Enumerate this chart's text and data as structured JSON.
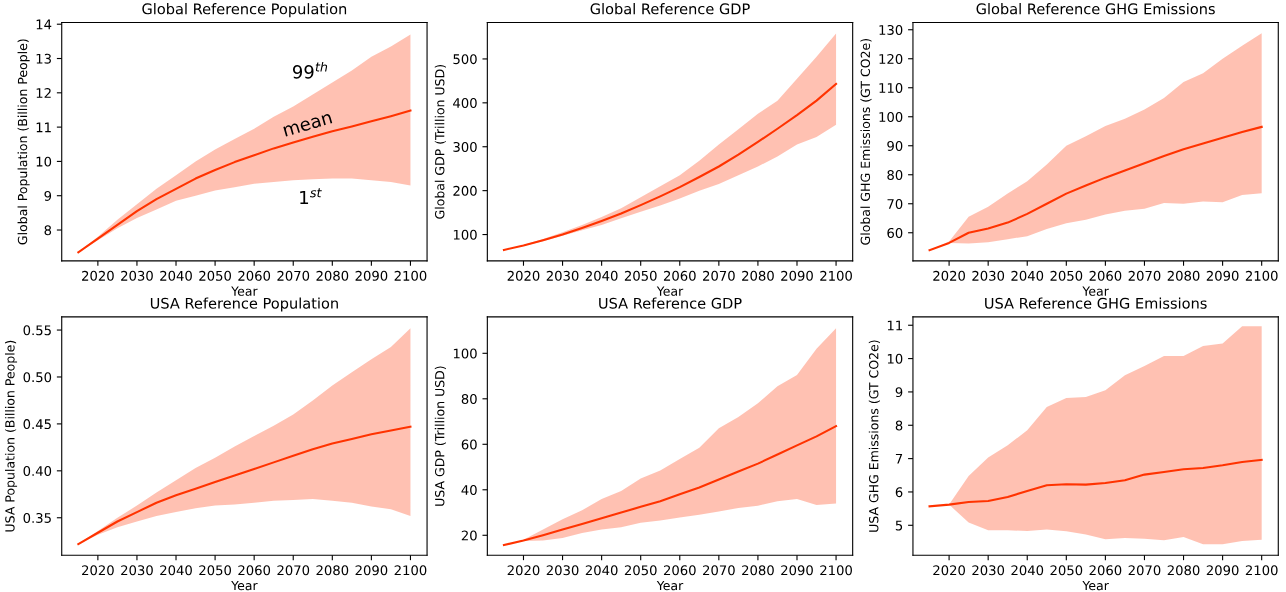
{
  "chart_data": [
    {
      "type": "line",
      "title": "Global Reference Population",
      "xlabel": "Year",
      "ylabel": "Global Population (Billion People)",
      "xlim": [
        2010.75,
        2104.25
      ],
      "xticks": [
        2020,
        2030,
        2040,
        2050,
        2060,
        2070,
        2080,
        2090,
        2100
      ],
      "ylim": [
        7.1,
        14.05
      ],
      "yticks": [
        8,
        9,
        10,
        11,
        12,
        13,
        14
      ],
      "x": [
        2015,
        2020,
        2025,
        2030,
        2035,
        2040,
        2045,
        2050,
        2055,
        2060,
        2065,
        2070,
        2075,
        2080,
        2085,
        2090,
        2095,
        2100
      ],
      "series": [
        {
          "color": "#ff3300",
          "values": [
            7.35,
            7.75,
            8.15,
            8.55,
            8.9,
            9.2,
            9.5,
            9.75,
            9.98,
            10.18,
            10.38,
            10.55,
            10.72,
            10.88,
            11.02,
            11.17,
            11.32,
            11.48
          ],
          "upper": [
            7.35,
            7.8,
            8.3,
            8.75,
            9.2,
            9.6,
            10.0,
            10.35,
            10.65,
            10.95,
            11.3,
            11.6,
            11.95,
            12.3,
            12.65,
            13.05,
            13.35,
            13.7
          ],
          "lower": [
            7.35,
            7.7,
            8.05,
            8.35,
            8.6,
            8.85,
            9.0,
            9.15,
            9.25,
            9.35,
            9.4,
            9.45,
            9.48,
            9.5,
            9.5,
            9.45,
            9.4,
            9.3
          ]
        }
      ],
      "annotations": [
        "99$^{th}$",
        "mean",
        "1$^{st}$"
      ]
    },
    {
      "type": "line",
      "title": "Global Reference GDP",
      "xlabel": "Year",
      "ylabel": "Global GDP (Trillion USD)",
      "xlim": [
        2010.75,
        2104.25
      ],
      "xticks": [
        2020,
        2030,
        2040,
        2050,
        2060,
        2070,
        2080,
        2090,
        2100
      ],
      "ylim": [
        40,
        583
      ],
      "yticks": [
        100,
        200,
        300,
        400,
        500
      ],
      "x": [
        2015,
        2020,
        2025,
        2030,
        2035,
        2040,
        2045,
        2050,
        2055,
        2060,
        2065,
        2070,
        2075,
        2080,
        2085,
        2090,
        2095,
        2100
      ],
      "series": [
        {
          "color": "#ff3300",
          "values": [
            65,
            75,
            87,
            100,
            115,
            131,
            148,
            167,
            187,
            208,
            231,
            255,
            282,
            311,
            341,
            372,
            405,
            443
          ],
          "upper": [
            65,
            76,
            90,
            105,
            122,
            140,
            160,
            185,
            210,
            235,
            268,
            305,
            340,
            375,
            405,
            455,
            505,
            558
          ],
          "lower": [
            65,
            74,
            85,
            97,
            110,
            122,
            137,
            152,
            166,
            182,
            200,
            215,
            235,
            255,
            278,
            305,
            322,
            350
          ]
        }
      ]
    },
    {
      "type": "line",
      "title": "Global Reference GHG Emissions",
      "xlabel": "Year",
      "ylabel": "Global GHG Emissions (GT CO2e)",
      "xlim": [
        2010.75,
        2104.25
      ],
      "xticks": [
        2020,
        2030,
        2040,
        2050,
        2060,
        2070,
        2080,
        2090,
        2100
      ],
      "ylim": [
        50.3,
        132.5
      ],
      "yticks": [
        60,
        70,
        80,
        90,
        100,
        110,
        120,
        130
      ],
      "x": [
        2015,
        2020,
        2025,
        2030,
        2035,
        2040,
        2045,
        2050,
        2055,
        2060,
        2065,
        2070,
        2075,
        2080,
        2085,
        2090,
        2095,
        2100
      ],
      "series": [
        {
          "color": "#ff3300",
          "values": [
            54,
            56.5,
            60,
            61.5,
            63.5,
            66.5,
            70,
            73.5,
            76.3,
            79,
            81.5,
            84,
            86.5,
            88.8,
            90.8,
            92.8,
            94.7,
            96.5
          ],
          "upper": [
            54,
            57,
            65.5,
            69,
            73.5,
            77.8,
            83.5,
            90,
            93.3,
            96.8,
            99.3,
            102.5,
            106.5,
            112,
            115,
            120,
            124.5,
            128.8
          ],
          "lower": [
            54,
            56.5,
            56.3,
            56.7,
            57.8,
            58.8,
            61.3,
            63.3,
            64.5,
            66.3,
            67.6,
            68.3,
            70.3,
            70,
            70.8,
            70.5,
            73,
            73.6
          ]
        }
      ]
    },
    {
      "type": "line",
      "title": "USA Reference Population",
      "xlabel": "Year",
      "ylabel": "USA Population (Billion People)",
      "xlim": [
        2010.75,
        2104.25
      ],
      "xticks": [
        2020,
        2030,
        2040,
        2050,
        2060,
        2070,
        2080,
        2090,
        2100
      ],
      "ylim": [
        0.31,
        0.564
      ],
      "yticks": [
        {
          "value": 0.35,
          "label": "0.35"
        },
        {
          "value": 0.4,
          "label": "0.40"
        },
        {
          "value": 0.45,
          "label": "0.45"
        },
        {
          "value": 0.5,
          "label": "0.50"
        },
        {
          "value": 0.55,
          "label": "0.55"
        }
      ],
      "x": [
        2015,
        2020,
        2025,
        2030,
        2035,
        2040,
        2045,
        2050,
        2055,
        2060,
        2065,
        2070,
        2075,
        2080,
        2085,
        2090,
        2095,
        2100
      ],
      "series": [
        {
          "color": "#ff3300",
          "values": [
            0.322,
            0.334,
            0.346,
            0.356,
            0.366,
            0.374,
            0.381,
            0.388,
            0.395,
            0.402,
            0.409,
            0.416,
            0.423,
            0.429,
            0.434,
            0.439,
            0.443,
            0.447
          ],
          "upper": [
            0.322,
            0.336,
            0.35,
            0.363,
            0.377,
            0.39,
            0.403,
            0.414,
            0.426,
            0.437,
            0.448,
            0.46,
            0.475,
            0.491,
            0.505,
            0.519,
            0.532,
            0.552
          ],
          "lower": [
            0.322,
            0.332,
            0.34,
            0.346,
            0.352,
            0.356,
            0.36,
            0.363,
            0.364,
            0.366,
            0.368,
            0.369,
            0.37,
            0.368,
            0.366,
            0.362,
            0.359,
            0.352
          ]
        }
      ]
    },
    {
      "type": "line",
      "title": "USA Reference GDP",
      "xlabel": "Year",
      "ylabel": "USA GDP (Trillion USD)",
      "xlim": [
        2010.75,
        2104.25
      ],
      "xticks": [
        2020,
        2030,
        2040,
        2050,
        2060,
        2070,
        2080,
        2090,
        2100
      ],
      "ylim": [
        11.2,
        116
      ],
      "yticks": [
        20,
        40,
        60,
        80,
        100
      ],
      "x": [
        2015,
        2020,
        2025,
        2030,
        2035,
        2040,
        2045,
        2050,
        2055,
        2060,
        2065,
        2070,
        2075,
        2080,
        2085,
        2090,
        2095,
        2100
      ],
      "series": [
        {
          "color": "#ff3300",
          "values": [
            15.7,
            17.7,
            20,
            22.5,
            25,
            27.5,
            30,
            32.5,
            35,
            38,
            41,
            44.5,
            48,
            51.5,
            55.5,
            59.5,
            63.5,
            68
          ],
          "upper": [
            15.7,
            18,
            22.5,
            27,
            31,
            36,
            39.5,
            45,
            48.5,
            53.5,
            58.5,
            67,
            72,
            78,
            85.5,
            90.5,
            102,
            111
          ],
          "lower": [
            15.7,
            17.5,
            17.7,
            18.8,
            21,
            22.5,
            23.5,
            25.5,
            26.5,
            27.8,
            29,
            30.5,
            32,
            33,
            35,
            36,
            33.3,
            34
          ]
        }
      ]
    },
    {
      "type": "line",
      "title": "USA Reference GHG Emissions",
      "xlabel": "Year",
      "ylabel": "USA GHG Emissions (GT CO2e)",
      "xlim": [
        2010.75,
        2104.25
      ],
      "xticks": [
        2020,
        2030,
        2040,
        2050,
        2060,
        2070,
        2080,
        2090,
        2100
      ],
      "ylim": [
        4.1,
        11.25
      ],
      "yticks": [
        5,
        6,
        7,
        8,
        9,
        10,
        11
      ],
      "x": [
        2015,
        2020,
        2025,
        2030,
        2035,
        2040,
        2045,
        2050,
        2055,
        2060,
        2065,
        2070,
        2075,
        2080,
        2085,
        2090,
        2095,
        2100
      ],
      "series": [
        {
          "color": "#ff3300",
          "values": [
            5.57,
            5.62,
            5.7,
            5.73,
            5.85,
            6.03,
            6.2,
            6.23,
            6.22,
            6.27,
            6.35,
            6.52,
            6.6,
            6.68,
            6.72,
            6.8,
            6.9,
            6.96
          ],
          "upper": [
            5.57,
            5.62,
            6.48,
            7.03,
            7.4,
            7.85,
            8.55,
            8.82,
            8.85,
            9.05,
            9.5,
            9.78,
            10.08,
            10.08,
            10.38,
            10.45,
            10.97,
            10.97
          ],
          "lower": [
            5.57,
            5.62,
            5.08,
            4.85,
            4.85,
            4.83,
            4.87,
            4.82,
            4.72,
            4.58,
            4.62,
            4.6,
            4.55,
            4.65,
            4.43,
            4.43,
            4.53,
            4.57
          ]
        }
      ]
    }
  ]
}
